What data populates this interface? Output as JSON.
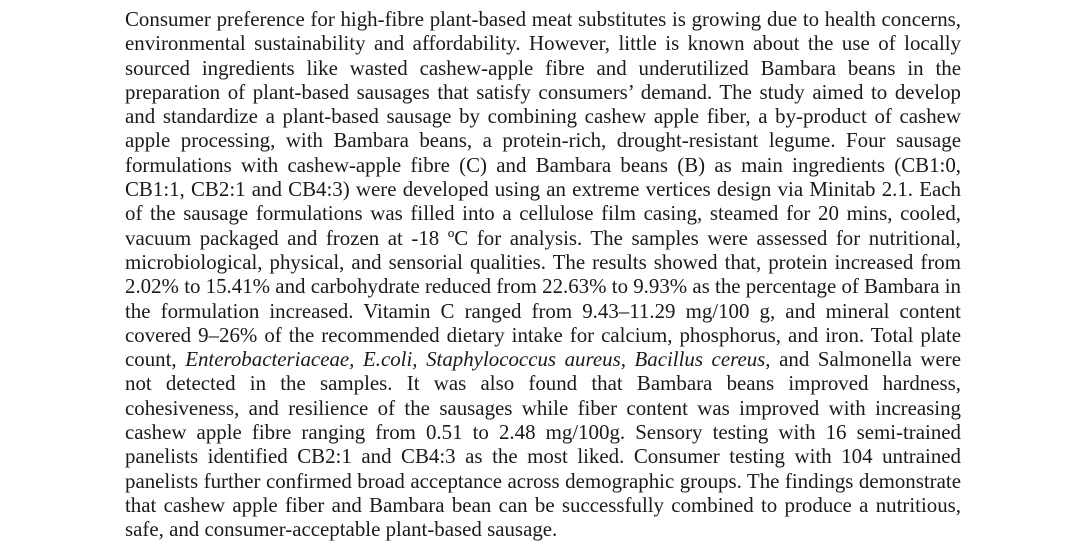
{
  "document": {
    "background_color": "#ffffff",
    "text_color": "#1a1a1a",
    "abstract": {
      "segments": [
        {
          "style": "roman",
          "text": "Consumer preference for high-fibre plant-based meat substitutes is growing due to health concerns, environmental sustainability and affordability. However, little is known about the use of locally sourced ingredients like wasted cashew-apple fibre and underutilized Bambara beans in the preparation of plant-based sausages that satisfy consumers’ demand. The study aimed to develop and standardize a plant-based sausage by combining cashew apple fiber, a by-product of cashew apple processing, with Bambara beans, a protein-rich, drought-resistant legume. Four sausage formulations with cashew-apple fibre (C) and Bambara beans (B) as main ingredients (CB1:0, CB1:1, CB2:1 and CB4:3) were developed using an extreme vertices design via Minitab 2.1. Each of the sausage formulations was filled into a cellulose film casing, steamed for 20 mins, cooled, vacuum packaged and frozen at -18 ºC for analysis. The samples were assessed for nutritional, microbiological, physical, and sensorial qualities. The results showed that, protein increased from 2.02% to 15.41% and carbohydrate reduced from 22.63% to 9.93% as the percentage of Bambara in the formulation increased. Vitamin C ranged from 9.43–11.29 mg/100 g, and mineral content covered 9–26% of the recommended dietary intake for calcium, phosphorus, and iron. Total plate count, "
        },
        {
          "style": "italic",
          "text": "Enterobacteriaceae, E.coli, Staphylococcus aureus, Bacillus cereus,"
        },
        {
          "style": "roman",
          "text": " and Salmonella were not detected in the samples. It was also found that Bambara beans improved hardness, cohesiveness, and resilience of the sausages while fiber content was improved with increasing cashew apple fibre ranging from 0.51 to 2.48 mg/100g. Sensory testing with 16 semi-trained panelists identified CB2:1 and CB4:3 as the most liked. Consumer testing with 104 untrained panelists further confirmed broad acceptance across demographic groups. The findings demonstrate that cashew apple fiber and Bambara bean can be successfully combined to produce a nutritious, safe, and consumer-acceptable plant-based sausage."
        }
      ]
    }
  }
}
